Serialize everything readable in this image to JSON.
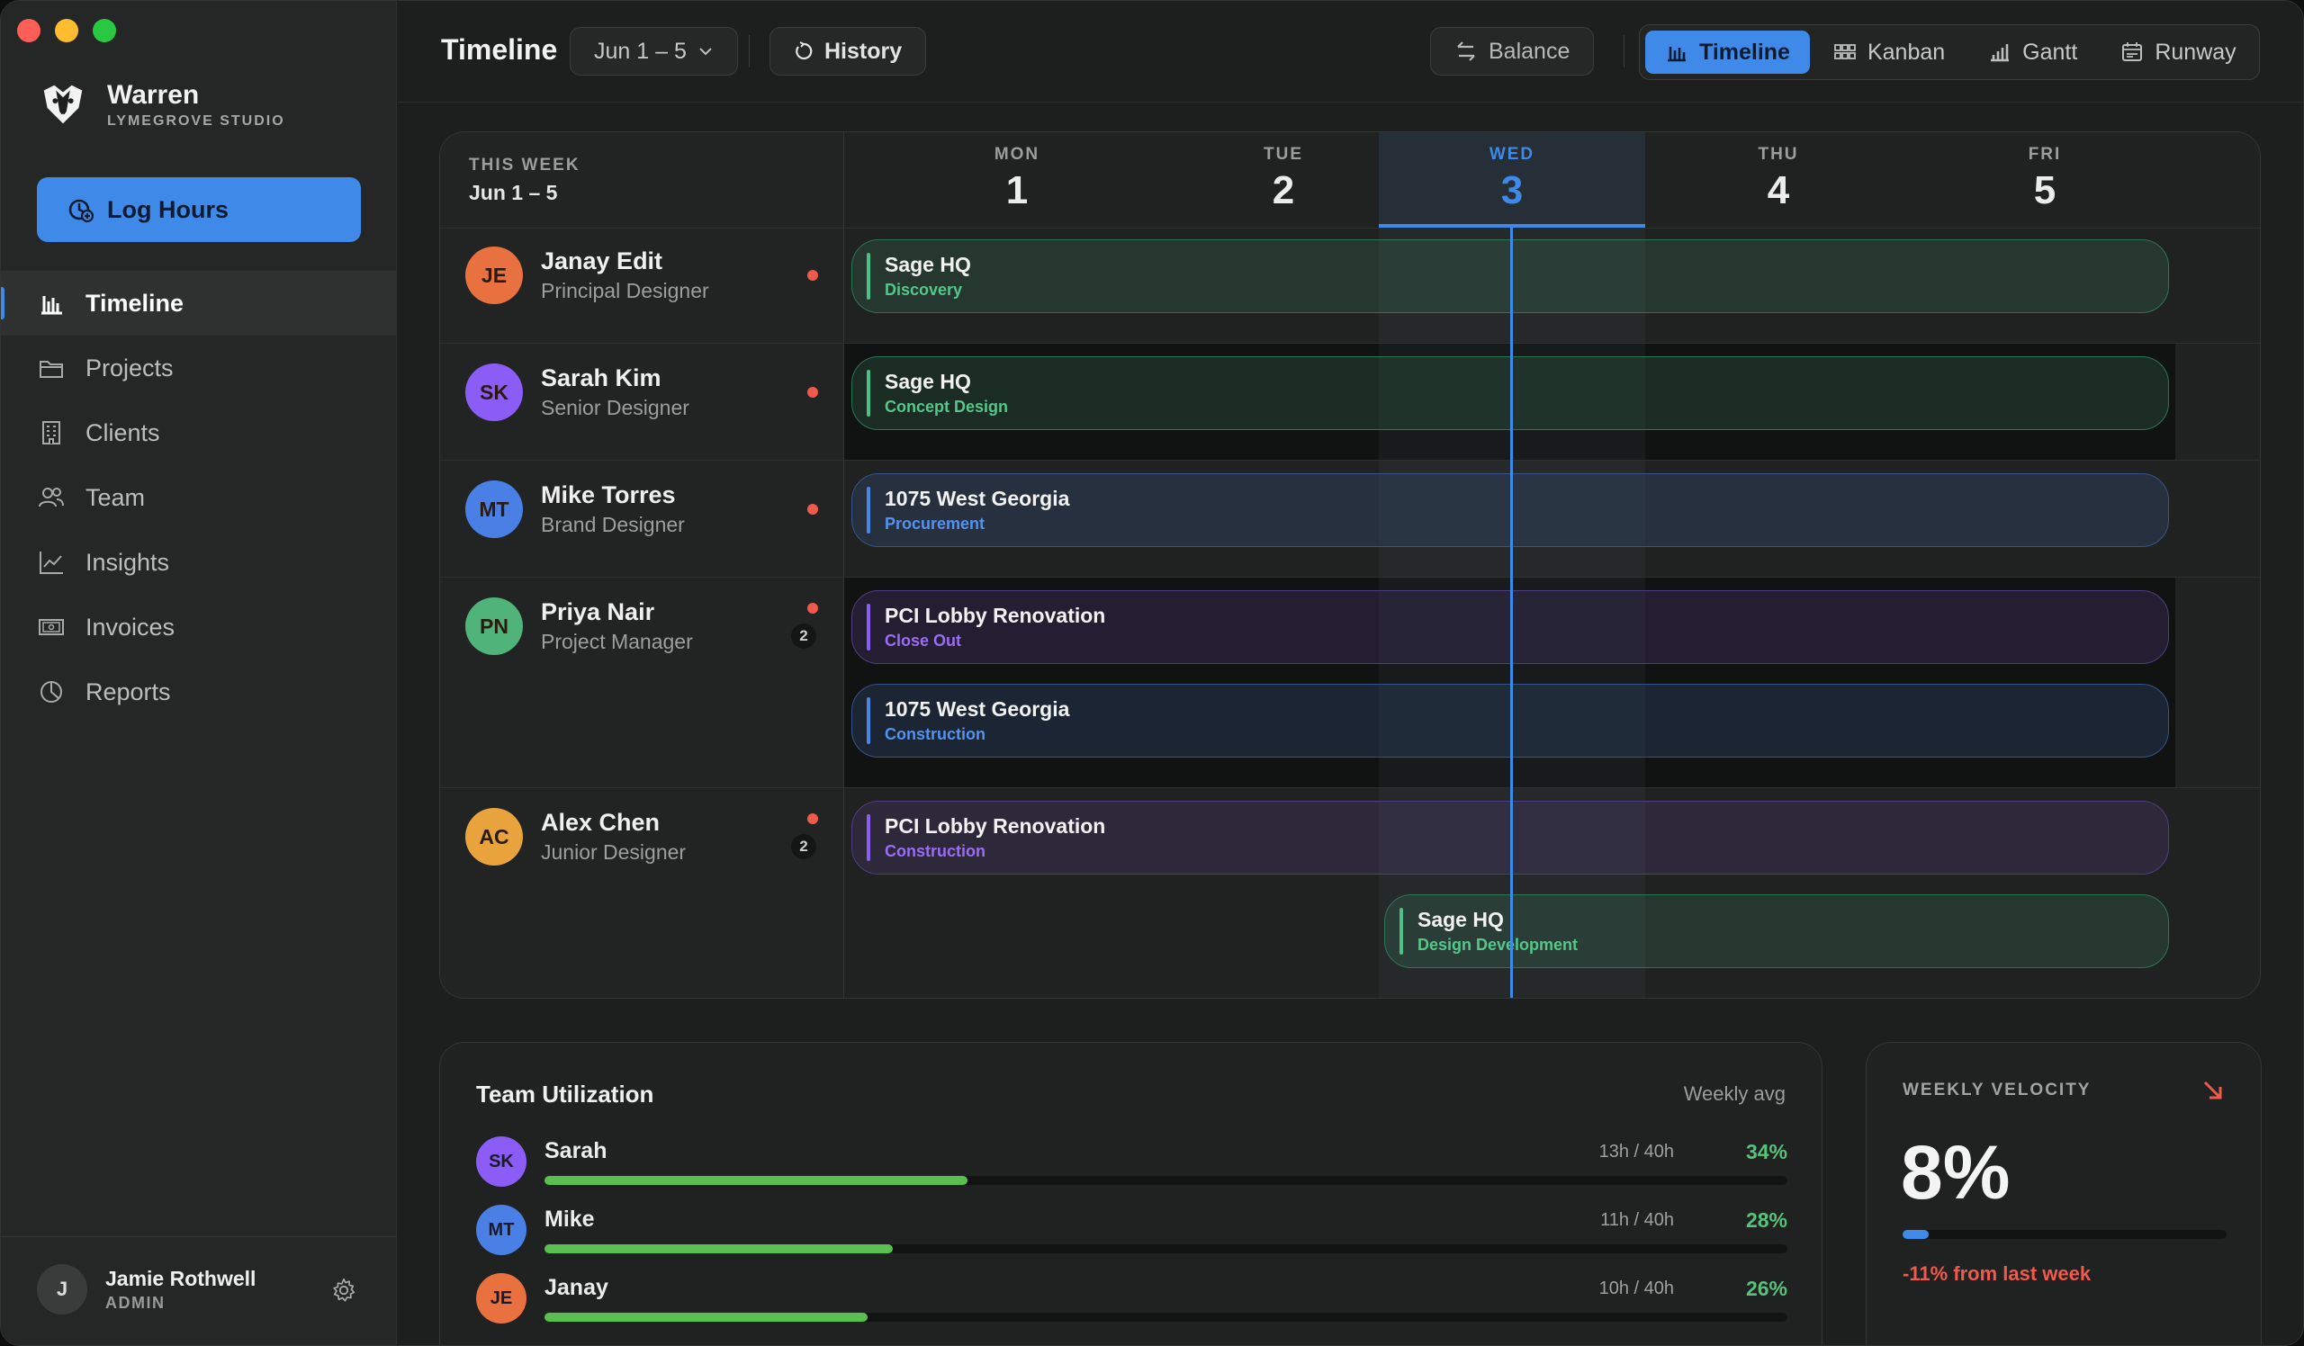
{
  "app": {
    "name": "Warren",
    "studio": "LYMEGROVE STUDIO",
    "log_hours": "Log Hours"
  },
  "nav": [
    {
      "label": "Timeline",
      "icon": "bar-chart-icon",
      "active": true
    },
    {
      "label": "Projects",
      "icon": "folder-icon"
    },
    {
      "label": "Clients",
      "icon": "building-icon"
    },
    {
      "label": "Team",
      "icon": "users-icon"
    },
    {
      "label": "Insights",
      "icon": "line-chart-icon"
    },
    {
      "label": "Invoices",
      "icon": "invoice-icon"
    },
    {
      "label": "Reports",
      "icon": "pie-chart-icon"
    }
  ],
  "user": {
    "initial": "J",
    "name": "Jamie Rothwell",
    "role": "ADMIN"
  },
  "topbar": {
    "title": "Timeline",
    "date_range": "Jun 1 – 5",
    "history": "History",
    "balance": "Balance",
    "views": [
      "Timeline",
      "Kanban",
      "Gantt",
      "Runway"
    ]
  },
  "timeline": {
    "week_label": "THIS WEEK",
    "week_range": "Jun 1 – 5",
    "days": [
      {
        "name": "MON",
        "date": "1"
      },
      {
        "name": "TUE",
        "date": "2"
      },
      {
        "name": "WED",
        "date": "3"
      },
      {
        "name": "THU",
        "date": "4"
      },
      {
        "name": "FRI",
        "date": "5"
      }
    ],
    "today_index": 2,
    "people": [
      {
        "initials": "JE",
        "name": "Janay Edit",
        "role": "Principal Designer",
        "color": "#e8713f",
        "bars": [
          {
            "project": "Sage HQ",
            "phase": "Discovery",
            "color": "green"
          }
        ]
      },
      {
        "initials": "SK",
        "name": "Sarah Kim",
        "role": "Senior Designer",
        "color": "#8b5cf6",
        "bars": [
          {
            "project": "Sage HQ",
            "phase": "Concept Design",
            "color": "green"
          }
        ]
      },
      {
        "initials": "MT",
        "name": "Mike Torres",
        "role": "Brand Designer",
        "color": "#4a7fe6",
        "bars": [
          {
            "project": "1075 West Georgia",
            "phase": "Procurement",
            "color": "blue"
          }
        ]
      },
      {
        "initials": "PN",
        "name": "Priya Nair",
        "role": "Project Manager",
        "color": "#4fb37a",
        "count": "2",
        "bars": [
          {
            "project": "PCI Lobby Renovation",
            "phase": "Close Out",
            "color": "purple"
          },
          {
            "project": "1075 West Georgia",
            "phase": "Construction",
            "color": "blue"
          }
        ]
      },
      {
        "initials": "AC",
        "name": "Alex Chen",
        "role": "Junior Designer",
        "color": "#e8a33c",
        "count": "2",
        "bars": [
          {
            "project": "PCI Lobby Renovation",
            "phase": "Construction",
            "color": "purple"
          },
          {
            "project": "Sage HQ",
            "phase": "Design Development",
            "color": "green"
          }
        ]
      }
    ]
  },
  "utilization": {
    "title": "Team Utilization",
    "subtitle": "Weekly avg",
    "rows": [
      {
        "initials": "SK",
        "name": "Sarah",
        "hours": "13h / 40h",
        "pct": "34%",
        "fill": 0.34,
        "color": "#8b5cf6"
      },
      {
        "initials": "MT",
        "name": "Mike",
        "hours": "11h / 40h",
        "pct": "28%",
        "fill": 0.28,
        "color": "#4a7fe6"
      },
      {
        "initials": "JE",
        "name": "Janay",
        "hours": "10h / 40h",
        "pct": "26%",
        "fill": 0.26,
        "color": "#e8713f"
      }
    ]
  },
  "velocity": {
    "label": "WEEKLY VELOCITY",
    "value": "8%",
    "fill": 0.08,
    "change": "-11% from last week"
  }
}
